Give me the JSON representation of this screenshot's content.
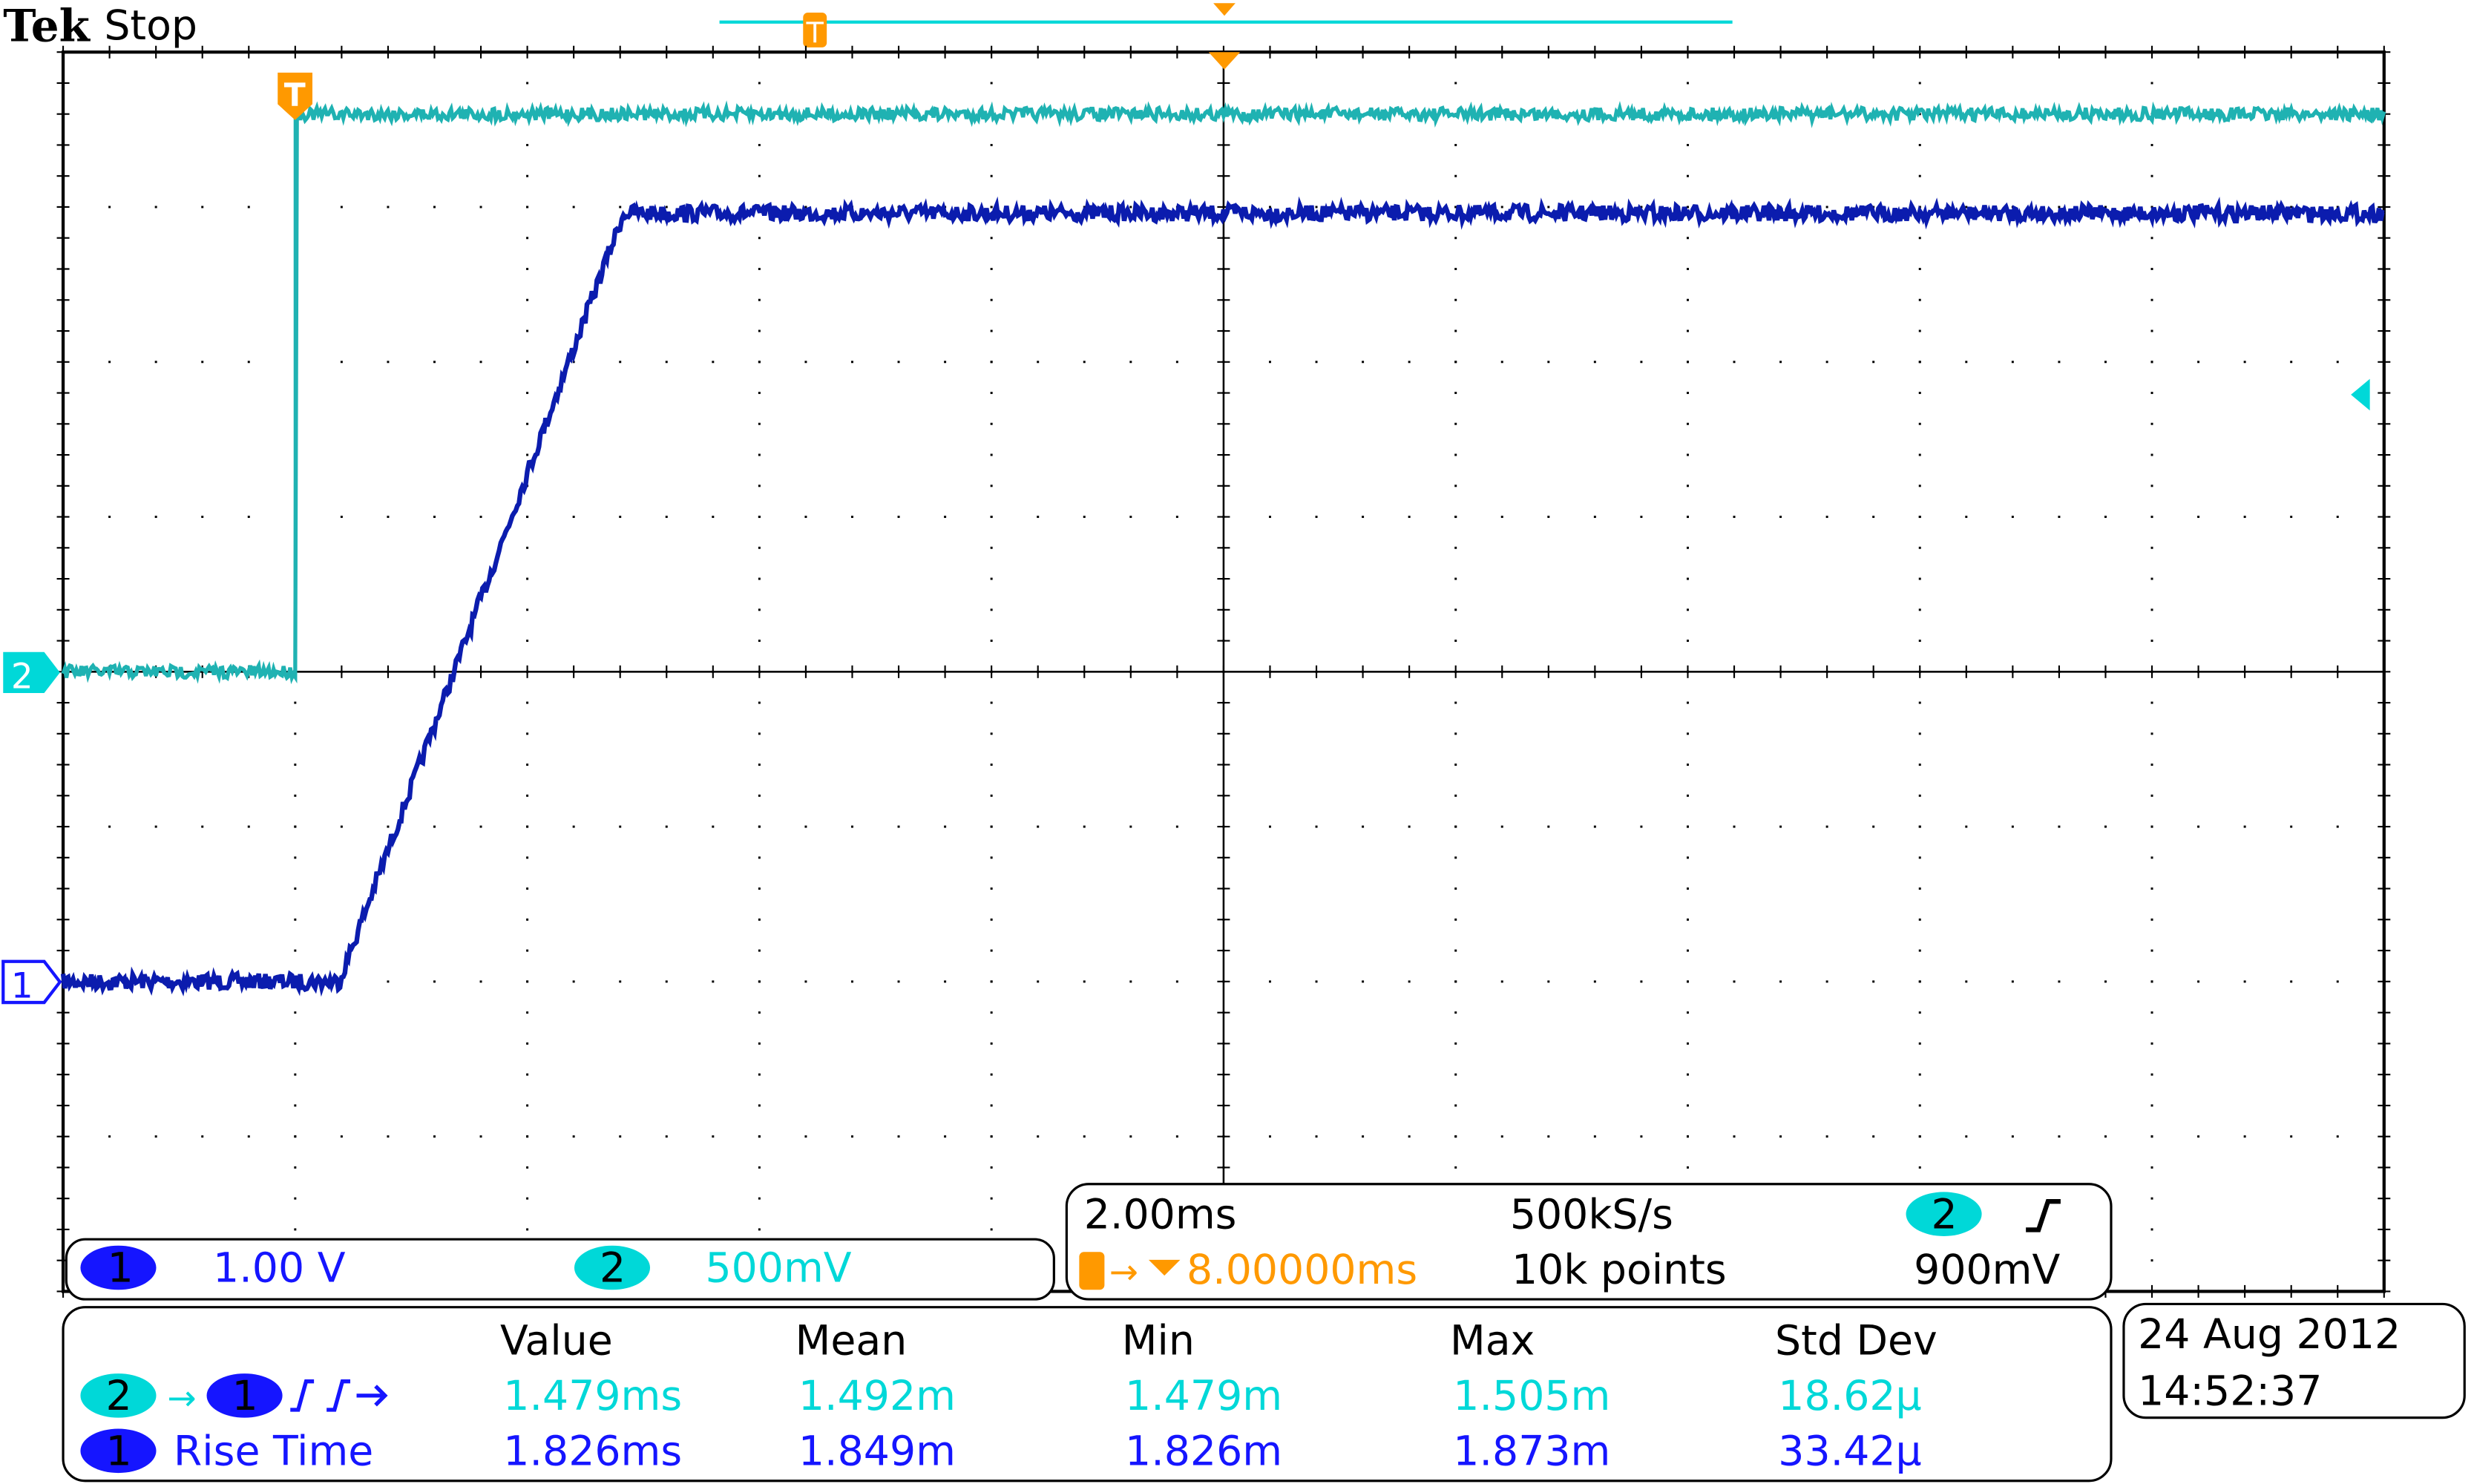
{
  "header": {
    "brand": "Tek",
    "status": "Stop"
  },
  "colors": {
    "ch1": "#1515ff",
    "ch1_trace": "#0b1cae",
    "ch2": "#00d8d8",
    "ch2_trace": "#1fb2b2",
    "trigger": "#ff9900"
  },
  "channels": [
    {
      "id": "1",
      "scale": "1.00 V"
    },
    {
      "id": "2",
      "scale": "500mV"
    }
  ],
  "horizontal": {
    "timebase": "2.00ms",
    "sample_rate": "500kS/s",
    "trigger_source": "2",
    "trigger_slope_icon": "rising-edge-icon",
    "delay": "8.00000ms",
    "record_length": "10k points",
    "trigger_level": "900mV"
  },
  "measurements": {
    "headers": [
      "Value",
      "Mean",
      "Min",
      "Max",
      "Std Dev"
    ],
    "rows": [
      {
        "source": "2",
        "target": "1",
        "label": "",
        "icon": "delay-rising-rising-icon",
        "values": [
          "1.479ms",
          "1.492m",
          "1.479m",
          "1.505m",
          "18.62µ"
        ]
      },
      {
        "source": "1",
        "label": "Rise Time",
        "values": [
          "1.826ms",
          "1.849m",
          "1.826m",
          "1.873m",
          "33.42µ"
        ]
      }
    ]
  },
  "datetime": {
    "date": "24 Aug 2012",
    "time": "14:52:37"
  },
  "chart_data": {
    "type": "line",
    "xlabel": "",
    "ylabel": "",
    "x_units": "ms from trigger",
    "xlim": [
      -2,
      18
    ],
    "divisions": {
      "horizontal": 10,
      "vertical": 8
    },
    "grid": true,
    "series": [
      {
        "channel": "1",
        "volts_per_div": 1.0,
        "offset_div": -2,
        "points": [
          [
            -2,
            0
          ],
          [
            0.38,
            0
          ],
          [
            2.83,
            4.96
          ],
          [
            18,
            4.96
          ]
        ]
      },
      {
        "channel": "2",
        "volts_per_div": 0.5,
        "offset_div": 0,
        "points": [
          [
            -2,
            0
          ],
          [
            0,
            0
          ],
          [
            0.001,
            1.8
          ],
          [
            18,
            1.8
          ]
        ]
      }
    ]
  }
}
